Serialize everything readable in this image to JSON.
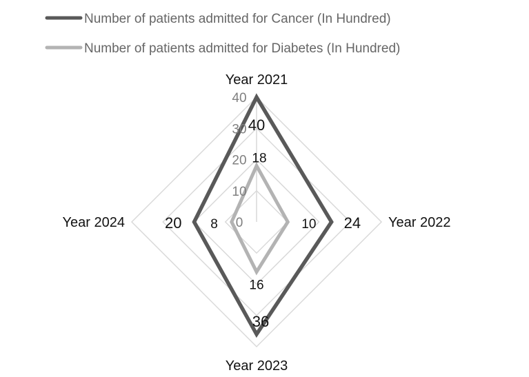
{
  "chart_data": {
    "type": "radar",
    "categories": [
      "Year 2021",
      "Year 2022",
      "Year 2023",
      "Year 2024"
    ],
    "series": [
      {
        "name": "Number of patients admitted for Cancer (In Hundred)",
        "values": [
          40,
          24,
          36,
          20
        ],
        "color": "#595959"
      },
      {
        "name": "Number of patients admitted for Diabetes (In Hundred)",
        "values": [
          18,
          10,
          16,
          8
        ],
        "color": "#b3b3b3"
      }
    ],
    "rmin": 0,
    "rmax": 40,
    "ticks": [
      0,
      10,
      20,
      30,
      40
    ],
    "gridline_color": "#d9d9d9",
    "grid": true,
    "legend": "top-left",
    "data_labels": true
  }
}
